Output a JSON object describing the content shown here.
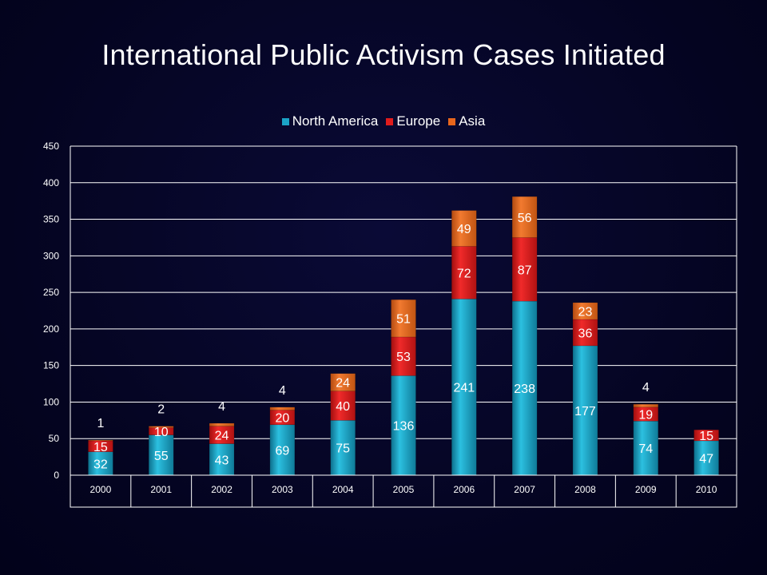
{
  "chart_data": {
    "type": "bar",
    "stacked": true,
    "title": "International Public Activism Cases Initiated",
    "categories": [
      "2000",
      "2001",
      "2002",
      "2003",
      "2004",
      "2005",
      "2006",
      "2007",
      "2008",
      "2009",
      "2010"
    ],
    "series": [
      {
        "name": "North America",
        "color": "#1ba3c6",
        "values": [
          32,
          55,
          43,
          69,
          75,
          136,
          241,
          238,
          177,
          74,
          47
        ]
      },
      {
        "name": "Europe",
        "color": "#e01c1c",
        "values": [
          15,
          10,
          24,
          20,
          40,
          53,
          72,
          87,
          36,
          19,
          15
        ]
      },
      {
        "name": "Asia",
        "color": "#e8661c",
        "values": [
          1,
          2,
          4,
          4,
          24,
          51,
          49,
          56,
          23,
          4,
          0
        ]
      }
    ],
    "value_labels": [
      [
        "32",
        "55",
        "43",
        "69",
        "75",
        "136",
        "241",
        "238",
        "177",
        "74",
        "47"
      ],
      [
        "15",
        "10",
        "24",
        "20",
        "40",
        "53",
        "72",
        "87",
        "36",
        "19",
        "15"
      ],
      [
        "1",
        "2",
        "4",
        "4",
        "24",
        "51",
        "49",
        "56",
        "23",
        "4",
        ""
      ]
    ],
    "ylim": [
      0,
      450
    ],
    "yticks": [
      "0",
      "50",
      "100",
      "150",
      "200",
      "250",
      "300",
      "350",
      "400",
      "450"
    ],
    "grid": true,
    "legend_position": "top"
  }
}
